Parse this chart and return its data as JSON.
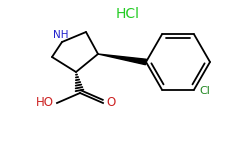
{
  "background_color": "#ffffff",
  "hcl_text": "HCl",
  "hcl_color": "#22cc22",
  "nh_text": "NH",
  "nh_color": "#2222cc",
  "ho_text": "HO",
  "ho_color": "#cc2222",
  "o_text": "O",
  "o_color": "#cc2222",
  "cl_text": "Cl",
  "cl_color": "#228822",
  "bond_color": "#000000",
  "bond_lw": 1.3
}
